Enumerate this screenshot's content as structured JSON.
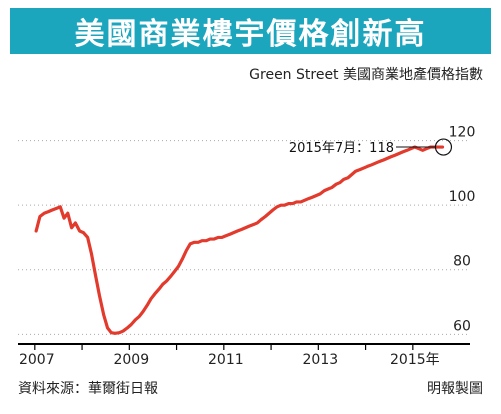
{
  "title": "美國商業樓宇價格創新高",
  "colors": {
    "title_bg": "#1ba6bd",
    "line": "#e23a2c",
    "grid": "#aaaaaa",
    "axis": "#000000"
  },
  "source": "資料來源：華爾街日報",
  "credit": "明報製圖",
  "chart_data": {
    "type": "line",
    "title": "Green Street 美國商業地產價格指數",
    "xlabel": "",
    "ylabel": "",
    "x_ticks": [
      "2007",
      "2009",
      "2011",
      "2013",
      "2015年"
    ],
    "y_ticks": [
      "120",
      "100",
      "80",
      "60"
    ],
    "ylim": [
      57,
      127
    ],
    "grid": "horizontal-dotted",
    "annotation": {
      "text": "2015年7月：118",
      "x": 2015.5,
      "y": 118
    },
    "series": [
      {
        "x": [
          2006.88,
          2006.96,
          2007.05,
          2007.14,
          2007.22,
          2007.31,
          2007.39,
          2007.47,
          2007.55,
          2007.63,
          2007.71,
          2007.8,
          2007.88,
          2007.97,
          2008.05,
          2008.14,
          2008.22,
          2008.31,
          2008.39,
          2008.47,
          2008.55,
          2008.64,
          2008.72,
          2008.81,
          2008.89,
          2008.98,
          2009.06,
          2009.14,
          2009.23,
          2009.31,
          2009.39,
          2009.48,
          2009.56,
          2009.64,
          2009.73,
          2009.81,
          2009.89,
          2009.98,
          2010.06,
          2010.14,
          2010.23,
          2010.31,
          2010.39,
          2010.48,
          2010.56,
          2010.64,
          2010.73,
          2010.81,
          2010.89,
          2010.98,
          2011.06,
          2011.14,
          2011.23,
          2011.31,
          2011.39,
          2011.48,
          2011.56,
          2011.64,
          2011.73,
          2011.81,
          2011.89,
          2011.98,
          2012.06,
          2012.14,
          2012.23,
          2012.31,
          2012.39,
          2012.48,
          2012.56,
          2012.64,
          2012.73,
          2012.81,
          2012.89,
          2012.98,
          2013.06,
          2013.14,
          2013.23,
          2013.31,
          2013.39,
          2013.48,
          2013.56,
          2013.64,
          2013.73,
          2013.81,
          2013.89,
          2013.98,
          2014.06,
          2014.14,
          2014.23,
          2014.31,
          2014.39,
          2014.48,
          2014.56,
          2014.64,
          2014.73,
          2014.81,
          2014.89,
          2014.98,
          2015.06,
          2015.14,
          2015.23,
          2015.31,
          2015.39,
          2015.48
        ],
        "values": [
          92.0,
          96.5,
          97.5,
          98.0,
          98.5,
          99.0,
          99.5,
          96.0,
          97.5,
          93.0,
          94.5,
          92.0,
          91.5,
          90.0,
          85.0,
          78.0,
          72.0,
          66.0,
          62.0,
          60.5,
          60.3,
          60.5,
          61.0,
          62.0,
          63.0,
          64.5,
          65.5,
          67.0,
          69.0,
          71.0,
          72.5,
          74.0,
          75.5,
          76.5,
          78.0,
          79.5,
          81.0,
          83.5,
          86.0,
          88.0,
          88.5,
          88.5,
          89.0,
          89.0,
          89.5,
          89.5,
          90.0,
          90.0,
          90.5,
          91.0,
          91.5,
          92.0,
          92.5,
          93.0,
          93.5,
          94.0,
          94.5,
          95.5,
          96.5,
          97.5,
          98.5,
          99.5,
          100.0,
          100.0,
          100.5,
          100.5,
          101.0,
          101.0,
          101.5,
          102.0,
          102.5,
          103.0,
          103.5,
          104.5,
          105.0,
          105.5,
          106.5,
          107.0,
          108.0,
          108.5,
          109.5,
          110.5,
          111.0,
          111.5,
          112.0,
          112.5,
          113.0,
          113.5,
          114.0,
          114.5,
          115.0,
          115.5,
          116.0,
          116.5,
          117.0,
          117.5,
          118.0,
          117.5,
          117.0,
          117.5,
          118.0,
          118.0,
          118.0,
          118.0
        ]
      }
    ]
  }
}
